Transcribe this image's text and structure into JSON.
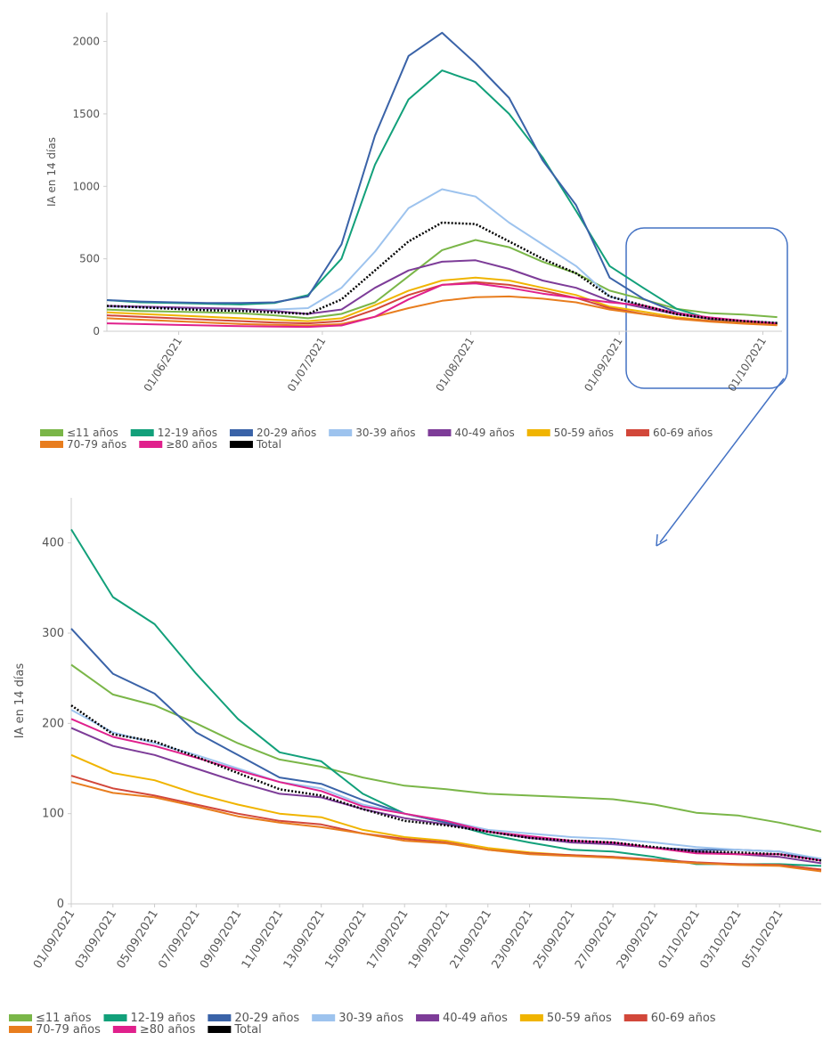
{
  "chart_data": [
    {
      "type": "line",
      "ylabel": "IA en 14 días",
      "x": [
        "17/05/2021",
        "24/05/2021",
        "31/05/2021",
        "07/06/2021",
        "14/06/2021",
        "21/06/2021",
        "28/06/2021",
        "05/07/2021",
        "12/07/2021",
        "19/07/2021",
        "26/07/2021",
        "02/08/2021",
        "09/08/2021",
        "16/08/2021",
        "23/08/2021",
        "30/08/2021",
        "06/09/2021",
        "13/09/2021",
        "20/09/2021",
        "27/09/2021",
        "04/10/2021"
      ],
      "xlim": [
        "17/05/2021",
        "05/10/2021"
      ],
      "xticks": [
        "01/06/2021",
        "01/07/2021",
        "01/08/2021",
        "01/09/2021",
        "01/10/2021"
      ],
      "ylim": [
        0,
        2200
      ],
      "yticks": [
        0,
        500,
        1000,
        1500,
        2000
      ],
      "legend": "bottom",
      "series": [
        {
          "name": "≤11 años",
          "color": "#7ab648",
          "values": [
            150,
            140,
            135,
            130,
            125,
            110,
            90,
            120,
            200,
            380,
            560,
            630,
            580,
            480,
            400,
            280,
            220,
            155,
            125,
            115,
            98
          ]
        },
        {
          "name": "12-19 años",
          "color": "#12a07a",
          "values": [
            215,
            200,
            195,
            190,
            185,
            195,
            250,
            500,
            1150,
            1600,
            1800,
            1720,
            1500,
            1200,
            830,
            450,
            300,
            155,
            85,
            57,
            50
          ]
        },
        {
          "name": "20-29 años",
          "color": "#3a63a8",
          "values": [
            215,
            205,
            200,
            195,
            195,
            200,
            240,
            600,
            1350,
            1900,
            2060,
            1850,
            1610,
            1180,
            870,
            370,
            225,
            130,
            85,
            68,
            55
          ]
        },
        {
          "name": "30-39 años",
          "color": "#9dc3ee",
          "values": [
            170,
            165,
            160,
            155,
            150,
            150,
            160,
            300,
            550,
            850,
            980,
            930,
            750,
            600,
            450,
            240,
            175,
            120,
            87,
            72,
            60
          ]
        },
        {
          "name": "40-49 años",
          "color": "#7d3c98",
          "values": [
            175,
            170,
            165,
            160,
            155,
            140,
            120,
            150,
            300,
            420,
            480,
            490,
            430,
            350,
            300,
            210,
            163,
            118,
            86,
            66,
            52
          ]
        },
        {
          "name": "50-59 años",
          "color": "#f0b400",
          "values": [
            130,
            120,
            110,
            100,
            90,
            80,
            70,
            90,
            180,
            280,
            350,
            370,
            350,
            300,
            250,
            170,
            135,
            97,
            72,
            58,
            45
          ]
        },
        {
          "name": "60-69 años",
          "color": "#d2473a",
          "values": [
            110,
            100,
            90,
            80,
            70,
            60,
            55,
            70,
            150,
            250,
            320,
            340,
            320,
            280,
            230,
            160,
            120,
            88,
            70,
            55,
            45
          ]
        },
        {
          "name": "70-79 años",
          "color": "#e87d1e",
          "values": [
            90,
            80,
            70,
            60,
            50,
            45,
            40,
            50,
            100,
            160,
            210,
            235,
            240,
            225,
            200,
            150,
            118,
            86,
            66,
            52,
            42
          ]
        },
        {
          "name": "≥80 años",
          "color": "#e0208c",
          "values": [
            55,
            50,
            45,
            40,
            35,
            32,
            30,
            40,
            100,
            220,
            320,
            330,
            300,
            260,
            230,
            200,
            178,
            125,
            95,
            72,
            55
          ]
        },
        {
          "name": "Total",
          "color": "#000000",
          "style": "dotted",
          "values": [
            175,
            165,
            155,
            145,
            140,
            130,
            120,
            220,
            420,
            620,
            750,
            740,
            620,
            500,
            400,
            240,
            178,
            118,
            87,
            70,
            57
          ]
        }
      ]
    },
    {
      "type": "line",
      "ylabel": "IA en 14 días",
      "x": [
        "01/09/2021",
        "03/09/2021",
        "05/09/2021",
        "07/09/2021",
        "09/09/2021",
        "11/09/2021",
        "13/09/2021",
        "15/09/2021",
        "17/09/2021",
        "19/09/2021",
        "21/09/2021",
        "23/09/2021",
        "25/09/2021",
        "27/09/2021",
        "29/09/2021",
        "01/10/2021",
        "03/10/2021",
        "05/10/2021",
        "07/10/2021"
      ],
      "xlim": [
        "01/09/2021",
        "07/10/2021"
      ],
      "xticks": [
        "01/09/2021",
        "03/09/2021",
        "05/09/2021",
        "07/09/2021",
        "09/09/2021",
        "11/09/2021",
        "13/09/2021",
        "15/09/2021",
        "17/09/2021",
        "19/09/2021",
        "21/09/2021",
        "23/09/2021",
        "25/09/2021",
        "27/09/2021",
        "29/09/2021",
        "01/10/2021",
        "03/10/2021",
        "05/10/2021"
      ],
      "ylim": [
        0,
        450
      ],
      "yticks": [
        0,
        100,
        200,
        300,
        400
      ],
      "legend": "bottom",
      "series": [
        {
          "name": "≤11 años",
          "color": "#7ab648",
          "values": [
            265,
            232,
            220,
            200,
            178,
            160,
            152,
            140,
            131,
            127,
            122,
            120,
            118,
            116,
            110,
            101,
            98,
            90,
            80
          ]
        },
        {
          "name": "12-19 años",
          "color": "#12a07a",
          "values": [
            415,
            340,
            310,
            255,
            205,
            168,
            158,
            122,
            100,
            90,
            77,
            68,
            60,
            58,
            52,
            44,
            44,
            44,
            42
          ]
        },
        {
          "name": "20-29 años",
          "color": "#3a63a8",
          "values": [
            305,
            255,
            233,
            190,
            165,
            140,
            133,
            115,
            100,
            90,
            80,
            73,
            70,
            68,
            62,
            60,
            60,
            58,
            48
          ]
        },
        {
          "name": "30-39 años",
          "color": "#9dc3ee",
          "values": [
            215,
            190,
            178,
            165,
            150,
            135,
            128,
            110,
            100,
            92,
            82,
            78,
            74,
            72,
            68,
            63,
            60,
            58,
            50
          ]
        },
        {
          "name": "40-49 años",
          "color": "#7d3c98",
          "values": [
            195,
            175,
            165,
            150,
            135,
            122,
            118,
            105,
            95,
            88,
            80,
            73,
            68,
            66,
            62,
            58,
            55,
            52,
            45
          ]
        },
        {
          "name": "50-59 años",
          "color": "#f0b400",
          "values": [
            165,
            145,
            137,
            122,
            110,
            100,
            96,
            82,
            74,
            70,
            62,
            57,
            54,
            52,
            48,
            45,
            44,
            43,
            38
          ]
        },
        {
          "name": "60-69 años",
          "color": "#d2473a",
          "values": [
            142,
            128,
            120,
            110,
            100,
            92,
            88,
            78,
            72,
            68,
            60,
            56,
            54,
            52,
            49,
            46,
            44,
            43,
            38
          ]
        },
        {
          "name": "70-79 años",
          "color": "#e87d1e",
          "values": [
            135,
            123,
            118,
            108,
            97,
            90,
            85,
            78,
            70,
            67,
            60,
            55,
            53,
            51,
            48,
            45,
            43,
            42,
            36
          ]
        },
        {
          "name": "≥80 años",
          "color": "#e0208c",
          "values": [
            205,
            185,
            175,
            162,
            148,
            135,
            125,
            108,
            100,
            92,
            80,
            75,
            70,
            68,
            62,
            56,
            55,
            55,
            48
          ]
        },
        {
          "name": "Total",
          "color": "#000000",
          "style": "dotted",
          "values": [
            220,
            188,
            180,
            163,
            145,
            127,
            120,
            105,
            92,
            87,
            80,
            73,
            70,
            68,
            63,
            58,
            57,
            55,
            48
          ]
        }
      ]
    }
  ]
}
